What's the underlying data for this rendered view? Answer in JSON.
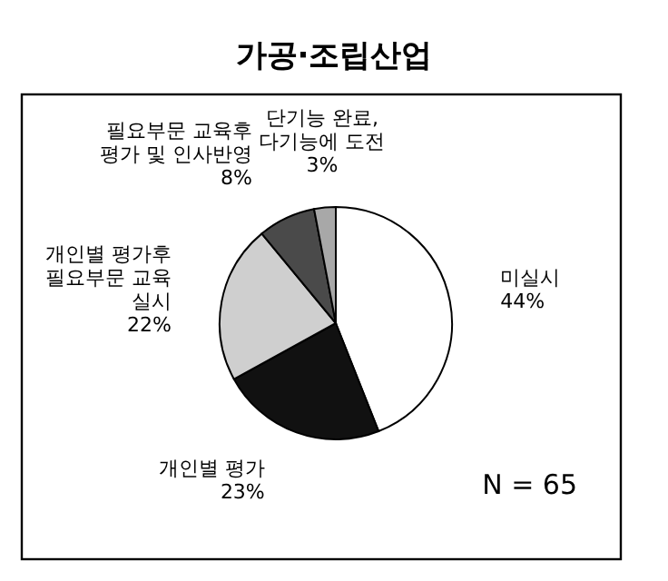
{
  "chart_data": {
    "type": "pie",
    "title": "가공·조립산업",
    "categories": [
      "미실시",
      "개인별 평가",
      "개인별 평가후\n필요부문 교육\n실시",
      "필요부문 교육후\n평가 및 인사반영",
      "단기능 완료,\n다기능에 도전"
    ],
    "values": [
      44,
      23,
      22,
      8,
      3
    ],
    "value_labels": [
      "44%",
      "23%",
      "22%",
      "8%",
      "3%"
    ],
    "colors": [
      "#ffffff",
      "#111111",
      "#cfcfcf",
      "#4a4a4a",
      "#a8a8a8"
    ],
    "annotations": [
      "N = 65"
    ]
  }
}
